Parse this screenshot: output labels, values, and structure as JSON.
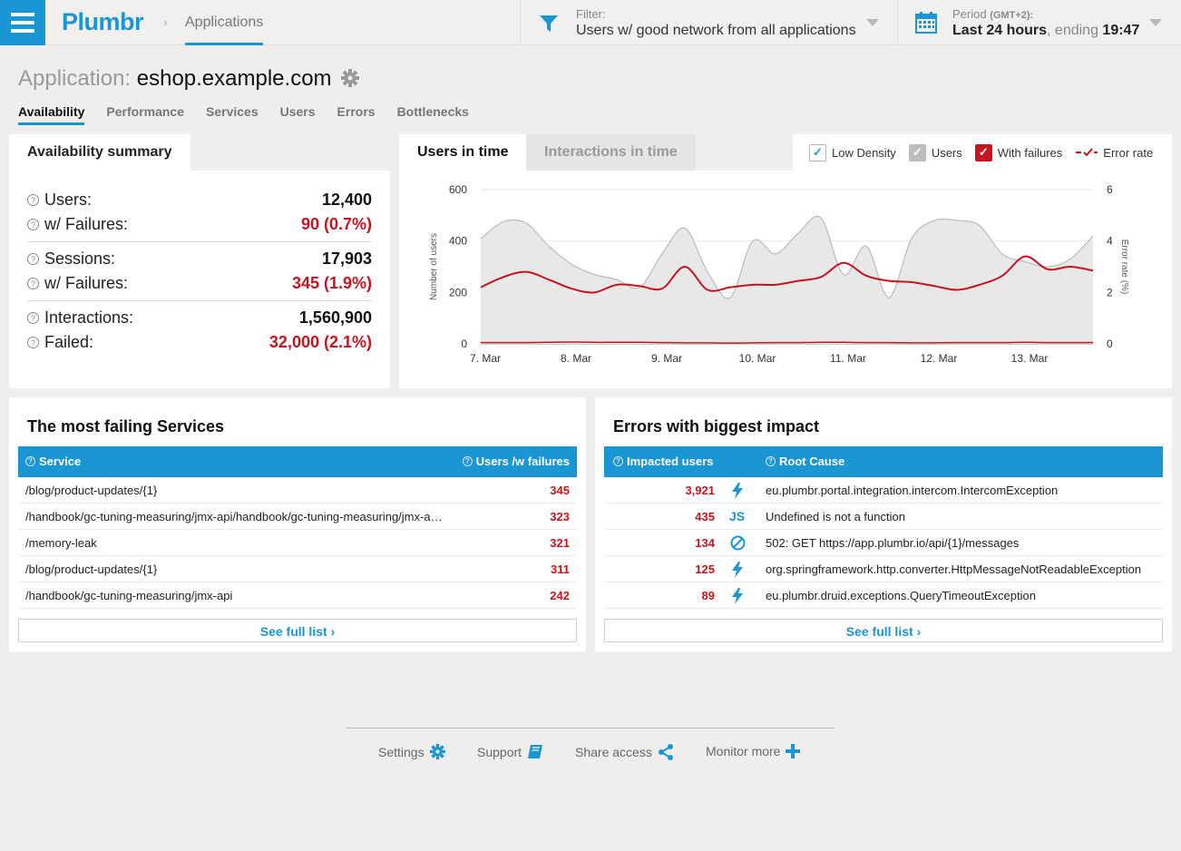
{
  "header": {
    "logo": "Plumbr",
    "breadcrumb_sep": "›",
    "breadcrumb": "Applications",
    "filter_label": "Filter:",
    "filter_value": "Users w/ good network from all applications",
    "period_label": "Period",
    "period_tz": "(GMT+2):",
    "period_range": "Last 24 hours",
    "period_mid": ", ending ",
    "period_time": "19:47"
  },
  "app": {
    "prefix": "Application: ",
    "name": "eshop.example.com"
  },
  "tabs": [
    "Availability",
    "Performance",
    "Services",
    "Users",
    "Errors",
    "Bottlenecks"
  ],
  "summary": {
    "title": "Availability summary",
    "rows": [
      {
        "label": "Users:",
        "value": "12,400"
      },
      {
        "label": "w/ Failures:",
        "value": "90 (0.7%)"
      },
      {
        "label": "Sessions:",
        "value": "17,903"
      },
      {
        "label": "w/ Failures:",
        "value": "345 (1.9%)"
      },
      {
        "label": "Interactions:",
        "value": "1,560,900"
      },
      {
        "label": "Failed:",
        "value": "32,000 (2.1%)"
      }
    ]
  },
  "chart_tabs": {
    "active": "Users in time",
    "inactive": "Interactions in time"
  },
  "legend": {
    "low_density": "Low Density",
    "users": "Users",
    "with_failures": "With failures",
    "error_rate": "Error rate"
  },
  "colors": {
    "accent": "#1a96d4",
    "failure": "#c8141e",
    "users_area": "#e8e8e8"
  },
  "chart_data": {
    "type": "area",
    "xlabel": "",
    "ylabel": "Number of users",
    "y2label": "Error rate (%)",
    "ylim": [
      0,
      600
    ],
    "y2lim": [
      0,
      6
    ],
    "yticks": [
      0,
      200,
      400,
      600
    ],
    "y2ticks": [
      0,
      2,
      4,
      6
    ],
    "x_tick_labels": [
      "7. Mar",
      "8. Mar",
      "9. Mar",
      "10. Mar",
      "11. Mar",
      "12. Mar",
      "13. Mar"
    ],
    "x": [
      7.0,
      7.25,
      7.5,
      7.75,
      8.0,
      8.25,
      8.5,
      8.75,
      9.0,
      9.25,
      9.5,
      9.75,
      10.0,
      10.25,
      10.5,
      10.75,
      11.0,
      11.25,
      11.5,
      11.75,
      12.0,
      12.25,
      12.5,
      12.75,
      13.0,
      13.25,
      13.5,
      13.75
    ],
    "series": [
      {
        "name": "Users",
        "values": [
          410,
          475,
          470,
          380,
          310,
          270,
          250,
          220,
          350,
          450,
          280,
          180,
          400,
          350,
          430,
          490,
          270,
          380,
          180,
          410,
          480,
          480,
          460,
          350,
          320,
          300,
          330,
          420
        ]
      },
      {
        "name": "With failures",
        "values": [
          220,
          260,
          280,
          250,
          215,
          200,
          230,
          225,
          215,
          300,
          210,
          220,
          230,
          230,
          245,
          260,
          315,
          265,
          245,
          240,
          225,
          210,
          230,
          265,
          340,
          290,
          300,
          285
        ]
      },
      {
        "name": "Error rate",
        "axis": "right",
        "values": [
          0.05,
          0.05,
          0.05,
          0.06,
          0.07,
          0.06,
          0.06,
          0.06,
          0.05,
          0.04,
          0.04,
          0.03,
          0.04,
          0.05,
          0.05,
          0.06,
          0.06,
          0.05,
          0.05,
          0.04,
          0.04,
          0.05,
          0.05,
          0.05,
          0.06,
          0.05,
          0.05,
          0.05
        ]
      }
    ]
  },
  "services": {
    "title": "The most failing Services",
    "col_service": "Service",
    "col_users": "Users /w failures",
    "rows": [
      {
        "service": "/blog/product-updates/{1}",
        "count": "345"
      },
      {
        "service": "/handbook/gc-tuning-measuring/jmx-api/handbook/gc-tuning-measuring/jmx-a…",
        "count": "323"
      },
      {
        "service": "/memory-leak",
        "count": "321"
      },
      {
        "service": "/blog/product-updates/{1}",
        "count": "311"
      },
      {
        "service": "/handbook/gc-tuning-measuring/jmx-api",
        "count": "242"
      }
    ],
    "see_full": "See full list"
  },
  "errors": {
    "title": "Errors with biggest impact",
    "col_users": "Impacted users",
    "col_cause": "Root Cause",
    "rows": [
      {
        "count": "3,921",
        "icon": "lightning-icon",
        "cause": "eu.plumbr.portal.integration.intercom.IntercomException"
      },
      {
        "count": "435",
        "icon": "js-icon",
        "icon_text": "JS",
        "cause": "Undefined is not a function"
      },
      {
        "count": "134",
        "icon": "blocked-icon",
        "cause": "502: GET https://app.plumbr.io/api/{1}/messages"
      },
      {
        "count": "125",
        "icon": "lightning-icon",
        "cause": "org.springframework.http.converter.HttpMessageNotReadableException"
      },
      {
        "count": "89",
        "icon": "lightning-icon",
        "cause": "eu.plumbr.druid.exceptions.QueryTimeoutException"
      }
    ],
    "see_full": "See full list"
  },
  "footer": {
    "settings": "Settings",
    "support": "Support",
    "share": "Share access",
    "monitor": "Monitor more"
  }
}
